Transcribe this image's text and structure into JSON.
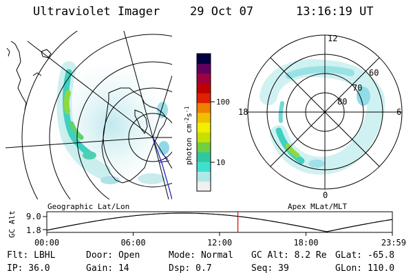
{
  "header": {
    "instrument": "Ultraviolet Imager",
    "date": "29 Oct 07",
    "time": "13:16:19 UT"
  },
  "colorbar": {
    "unit_label": "photon cm",
    "unit_exp1": "-2",
    "unit_mid": "s",
    "unit_exp2": "-1",
    "tick_100": "100",
    "tick_10": "10",
    "colors": [
      "#f0f0f0",
      "#b0e8e8",
      "#40e0d0",
      "#30c8a0",
      "#70d040",
      "#c8e000",
      "#f0f000",
      "#f0c000",
      "#f08000",
      "#e02000",
      "#c00000",
      "#a00040",
      "#600060",
      "#000040"
    ]
  },
  "left_map": {
    "caption": "Geographic Lat/Lon"
  },
  "right_map": {
    "caption": "Apex MLat/MLT",
    "mlt_labels": {
      "top": "12",
      "left": "18",
      "right": "6",
      "bottom": "0"
    },
    "mlat_labels": {
      "r60": "60",
      "r70": "70",
      "r80": "80"
    }
  },
  "timeline": {
    "ylabel": "GC Alt",
    "ytick_top": "9.0",
    "ytick_bottom": "1.8",
    "ticks": [
      "00:00",
      "06:00",
      "12:00",
      "18:00",
      "23:59"
    ],
    "marker_fraction": 0.553
  },
  "status": {
    "filter": "Flt: LBHL",
    "door": "Door: Open",
    "mode": "Mode: Normal",
    "gc_alt": "GC Alt: 8.2 Re",
    "glat": "GLat: -65.8",
    "ip": "IP: 36.0",
    "gain": "Gain: 14",
    "dsp": "Dsp:    0.7",
    "seq": "Seq: 39",
    "glon": "GLon: 110.0"
  }
}
